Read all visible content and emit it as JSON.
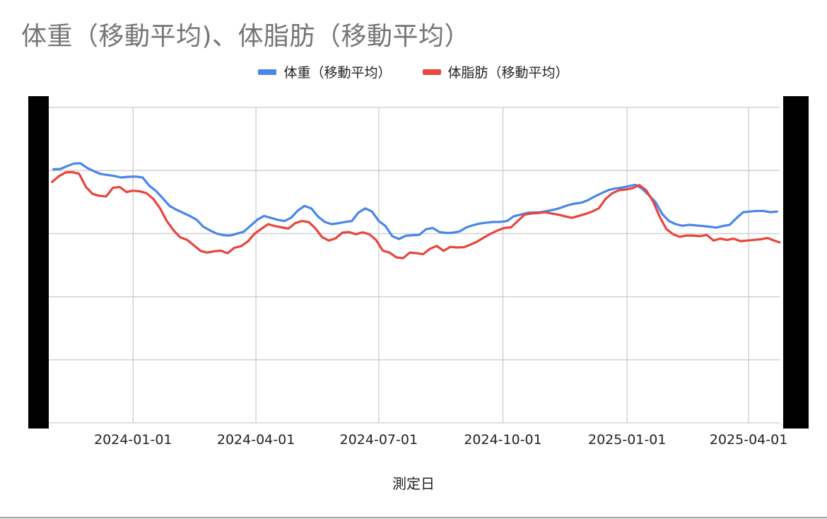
{
  "chart_data": {
    "type": "line",
    "title": "体重（移動平均)、体脂肪（移動平均）",
    "xlabel": "測定日",
    "x_ticks": [
      "2024-01-01",
      "2024-04-01",
      "2024-07-01",
      "2024-10-01",
      "2025-01-01",
      "2025-04-01"
    ],
    "x_range": [
      "2023-10-30",
      "2025-04-24"
    ],
    "grid": true,
    "legend_position": "top",
    "series": [
      {
        "name": "体重（移動平均）",
        "color": "#4a86e8",
        "points": [
          [
            "2023-11-03",
            0.804
          ],
          [
            "2023-11-08",
            0.805
          ],
          [
            "2023-11-13",
            0.814
          ],
          [
            "2023-11-18",
            0.822
          ],
          [
            "2023-11-23",
            0.823
          ],
          [
            "2023-11-28",
            0.808
          ],
          [
            "2023-12-03",
            0.798
          ],
          [
            "2023-12-08",
            0.789
          ],
          [
            "2023-12-13",
            0.786
          ],
          [
            "2023-12-18",
            0.783
          ],
          [
            "2023-12-23",
            0.778
          ],
          [
            "2023-12-28",
            0.78
          ],
          [
            "2024-01-03",
            0.781
          ],
          [
            "2024-01-08",
            0.778
          ],
          [
            "2024-01-13",
            0.752
          ],
          [
            "2024-01-18",
            0.735
          ],
          [
            "2024-01-23",
            0.712
          ],
          [
            "2024-01-28",
            0.688
          ],
          [
            "2024-02-02",
            0.676
          ],
          [
            "2024-02-07",
            0.666
          ],
          [
            "2024-02-12",
            0.656
          ],
          [
            "2024-02-17",
            0.644
          ],
          [
            "2024-02-22",
            0.622
          ],
          [
            "2024-02-27",
            0.61
          ],
          [
            "2024-03-03",
            0.6
          ],
          [
            "2024-03-08",
            0.595
          ],
          [
            "2024-03-13",
            0.594
          ],
          [
            "2024-03-18",
            0.6
          ],
          [
            "2024-03-23",
            0.606
          ],
          [
            "2024-03-28",
            0.625
          ],
          [
            "2024-04-02",
            0.644
          ],
          [
            "2024-04-07",
            0.656
          ],
          [
            "2024-04-12",
            0.65
          ],
          [
            "2024-04-17",
            0.644
          ],
          [
            "2024-04-22",
            0.64
          ],
          [
            "2024-04-27",
            0.65
          ],
          [
            "2024-05-02",
            0.673
          ],
          [
            "2024-05-07",
            0.688
          ],
          [
            "2024-05-12",
            0.68
          ],
          [
            "2024-05-17",
            0.654
          ],
          [
            "2024-05-22",
            0.637
          ],
          [
            "2024-05-27",
            0.63
          ],
          [
            "2024-06-01",
            0.633
          ],
          [
            "2024-06-06",
            0.637
          ],
          [
            "2024-06-11",
            0.64
          ],
          [
            "2024-06-16",
            0.667
          ],
          [
            "2024-06-21",
            0.68
          ],
          [
            "2024-06-26",
            0.67
          ],
          [
            "2024-07-01",
            0.64
          ],
          [
            "2024-07-06",
            0.624
          ],
          [
            "2024-07-11",
            0.592
          ],
          [
            "2024-07-16",
            0.583
          ],
          [
            "2024-07-21",
            0.593
          ],
          [
            "2024-07-26",
            0.595
          ],
          [
            "2024-07-31",
            0.596
          ],
          [
            "2024-08-05",
            0.614
          ],
          [
            "2024-08-10",
            0.618
          ],
          [
            "2024-08-15",
            0.605
          ],
          [
            "2024-08-20",
            0.602
          ],
          [
            "2024-08-25",
            0.603
          ],
          [
            "2024-08-30",
            0.607
          ],
          [
            "2024-09-04",
            0.62
          ],
          [
            "2024-09-09",
            0.627
          ],
          [
            "2024-09-14",
            0.632
          ],
          [
            "2024-09-19",
            0.635
          ],
          [
            "2024-09-24",
            0.637
          ],
          [
            "2024-09-29",
            0.637
          ],
          [
            "2024-10-04",
            0.64
          ],
          [
            "2024-10-09",
            0.655
          ],
          [
            "2024-10-14",
            0.66
          ],
          [
            "2024-10-19",
            0.666
          ],
          [
            "2024-10-24",
            0.667
          ],
          [
            "2024-10-29",
            0.668
          ],
          [
            "2024-11-03",
            0.672
          ],
          [
            "2024-11-08",
            0.676
          ],
          [
            "2024-11-13",
            0.682
          ],
          [
            "2024-11-18",
            0.69
          ],
          [
            "2024-11-23",
            0.695
          ],
          [
            "2024-11-28",
            0.698
          ],
          [
            "2024-12-03",
            0.706
          ],
          [
            "2024-12-08",
            0.718
          ],
          [
            "2024-12-13",
            0.728
          ],
          [
            "2024-12-18",
            0.738
          ],
          [
            "2024-12-23",
            0.743
          ],
          [
            "2024-12-28",
            0.746
          ],
          [
            "2025-01-02",
            0.75
          ],
          [
            "2025-01-07",
            0.755
          ],
          [
            "2025-01-12",
            0.743
          ],
          [
            "2025-01-17",
            0.722
          ],
          [
            "2025-01-22",
            0.7
          ],
          [
            "2025-01-27",
            0.662
          ],
          [
            "2025-02-01",
            0.64
          ],
          [
            "2025-02-06",
            0.63
          ],
          [
            "2025-02-11",
            0.625
          ],
          [
            "2025-02-16",
            0.628
          ],
          [
            "2025-02-21",
            0.626
          ],
          [
            "2025-02-26",
            0.624
          ],
          [
            "2025-03-03",
            0.622
          ],
          [
            "2025-03-08",
            0.619
          ],
          [
            "2025-03-13",
            0.624
          ],
          [
            "2025-03-18",
            0.628
          ],
          [
            "2025-03-23",
            0.649
          ],
          [
            "2025-03-28",
            0.668
          ],
          [
            "2025-04-02",
            0.67
          ],
          [
            "2025-04-07",
            0.672
          ],
          [
            "2025-04-12",
            0.672
          ],
          [
            "2025-04-17",
            0.668
          ],
          [
            "2025-04-22",
            0.67
          ]
        ]
      },
      {
        "name": "体脂肪（移動平均）",
        "color": "#e8453c",
        "points": [
          [
            "2023-11-02",
            0.764
          ],
          [
            "2023-11-07",
            0.782
          ],
          [
            "2023-11-12",
            0.794
          ],
          [
            "2023-11-17",
            0.795
          ],
          [
            "2023-11-22",
            0.79
          ],
          [
            "2023-11-27",
            0.748
          ],
          [
            "2023-12-02",
            0.726
          ],
          [
            "2023-12-07",
            0.72
          ],
          [
            "2023-12-12",
            0.718
          ],
          [
            "2023-12-17",
            0.745
          ],
          [
            "2023-12-22",
            0.748
          ],
          [
            "2023-12-27",
            0.732
          ],
          [
            "2024-01-01",
            0.736
          ],
          [
            "2024-01-06",
            0.734
          ],
          [
            "2024-01-11",
            0.728
          ],
          [
            "2024-01-16",
            0.71
          ],
          [
            "2024-01-21",
            0.68
          ],
          [
            "2024-01-26",
            0.64
          ],
          [
            "2024-01-31",
            0.61
          ],
          [
            "2024-02-05",
            0.588
          ],
          [
            "2024-02-10",
            0.58
          ],
          [
            "2024-02-15",
            0.563
          ],
          [
            "2024-02-20",
            0.545
          ],
          [
            "2024-02-25",
            0.54
          ],
          [
            "2024-03-01",
            0.544
          ],
          [
            "2024-03-06",
            0.546
          ],
          [
            "2024-03-11",
            0.538
          ],
          [
            "2024-03-16",
            0.555
          ],
          [
            "2024-03-21",
            0.56
          ],
          [
            "2024-03-26",
            0.575
          ],
          [
            "2024-03-31",
            0.6
          ],
          [
            "2024-04-05",
            0.615
          ],
          [
            "2024-04-10",
            0.63
          ],
          [
            "2024-04-15",
            0.624
          ],
          [
            "2024-04-20",
            0.62
          ],
          [
            "2024-04-25",
            0.616
          ],
          [
            "2024-04-30",
            0.633
          ],
          [
            "2024-05-05",
            0.64
          ],
          [
            "2024-05-10",
            0.637
          ],
          [
            "2024-05-15",
            0.617
          ],
          [
            "2024-05-20",
            0.589
          ],
          [
            "2024-05-25",
            0.578
          ],
          [
            "2024-05-30",
            0.585
          ],
          [
            "2024-06-04",
            0.603
          ],
          [
            "2024-06-09",
            0.605
          ],
          [
            "2024-06-14",
            0.598
          ],
          [
            "2024-06-19",
            0.604
          ],
          [
            "2024-06-24",
            0.598
          ],
          [
            "2024-06-29",
            0.58
          ],
          [
            "2024-07-04",
            0.546
          ],
          [
            "2024-07-09",
            0.54
          ],
          [
            "2024-07-14",
            0.525
          ],
          [
            "2024-07-19",
            0.522
          ],
          [
            "2024-07-24",
            0.54
          ],
          [
            "2024-07-29",
            0.538
          ],
          [
            "2024-08-03",
            0.535
          ],
          [
            "2024-08-08",
            0.552
          ],
          [
            "2024-08-13",
            0.561
          ],
          [
            "2024-08-18",
            0.545
          ],
          [
            "2024-08-23",
            0.558
          ],
          [
            "2024-08-28",
            0.556
          ],
          [
            "2024-09-02",
            0.557
          ],
          [
            "2024-09-07",
            0.565
          ],
          [
            "2024-09-12",
            0.575
          ],
          [
            "2024-09-17",
            0.588
          ],
          [
            "2024-09-22",
            0.6
          ],
          [
            "2024-09-27",
            0.61
          ],
          [
            "2024-10-02",
            0.618
          ],
          [
            "2024-10-07",
            0.62
          ],
          [
            "2024-10-12",
            0.64
          ],
          [
            "2024-10-17",
            0.66
          ],
          [
            "2024-10-22",
            0.664
          ],
          [
            "2024-10-27",
            0.665
          ],
          [
            "2024-11-01",
            0.668
          ],
          [
            "2024-11-06",
            0.664
          ],
          [
            "2024-11-11",
            0.66
          ],
          [
            "2024-11-16",
            0.655
          ],
          [
            "2024-11-21",
            0.65
          ],
          [
            "2024-11-26",
            0.656
          ],
          [
            "2024-12-01",
            0.662
          ],
          [
            "2024-12-06",
            0.67
          ],
          [
            "2024-12-11",
            0.68
          ],
          [
            "2024-12-16",
            0.71
          ],
          [
            "2024-12-21",
            0.728
          ],
          [
            "2024-12-26",
            0.738
          ],
          [
            "2024-12-31",
            0.74
          ],
          [
            "2025-01-05",
            0.744
          ],
          [
            "2025-01-10",
            0.754
          ],
          [
            "2025-01-15",
            0.738
          ],
          [
            "2025-01-20",
            0.704
          ],
          [
            "2025-01-25",
            0.655
          ],
          [
            "2025-01-30",
            0.615
          ],
          [
            "2025-02-04",
            0.598
          ],
          [
            "2025-02-09",
            0.59
          ],
          [
            "2025-02-14",
            0.594
          ],
          [
            "2025-02-19",
            0.594
          ],
          [
            "2025-02-24",
            0.592
          ],
          [
            "2025-03-01",
            0.596
          ],
          [
            "2025-03-06",
            0.578
          ],
          [
            "2025-03-11",
            0.584
          ],
          [
            "2025-03-16",
            0.58
          ],
          [
            "2025-03-21",
            0.584
          ],
          [
            "2025-03-26",
            0.576
          ],
          [
            "2025-03-31",
            0.578
          ],
          [
            "2025-04-05",
            0.58
          ],
          [
            "2025-04-10",
            0.582
          ],
          [
            "2025-04-15",
            0.586
          ],
          [
            "2025-04-20",
            0.578
          ],
          [
            "2025-04-24",
            0.572
          ]
        ]
      }
    ]
  }
}
